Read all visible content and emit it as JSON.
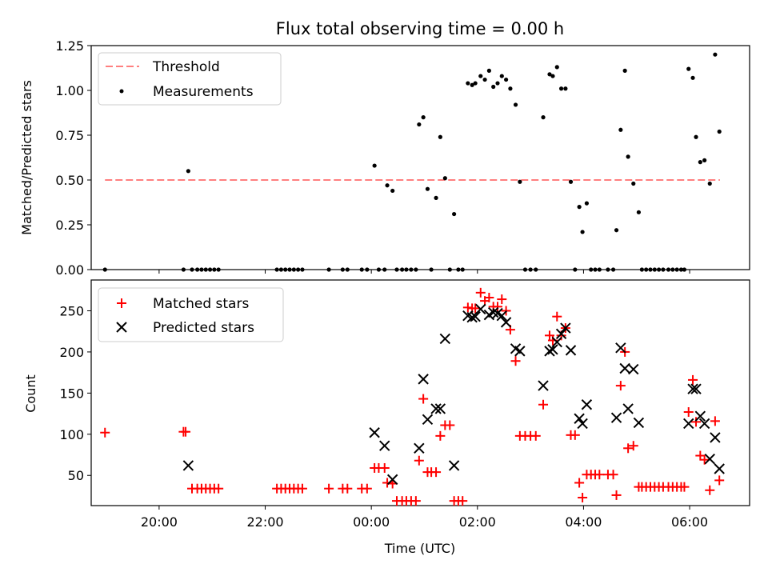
{
  "title": "Flux total observing time = 0.00 h",
  "chart_data": [
    {
      "type": "scatter",
      "ylabel": "Matched/Predicted stars",
      "ylim": [
        0,
        1.25
      ],
      "yticks": [
        0.0,
        0.25,
        0.5,
        0.75,
        1.0,
        1.25
      ],
      "ytick_labels": [
        "0.00",
        "0.25",
        "0.50",
        "0.75",
        "1.00",
        "1.25"
      ],
      "xlim": [
        18.72,
        31.13
      ],
      "legend": {
        "position": "top-left",
        "entries": [
          {
            "label": "Threshold",
            "style": "dashed-line",
            "color": "#ff7f7f"
          },
          {
            "label": "Measurements",
            "style": "dot",
            "color": "#000000"
          }
        ]
      },
      "threshold": {
        "name": "Threshold",
        "value": 0.5,
        "x_range": [
          18.98,
          30.57
        ],
        "color": "#ff7f7f"
      },
      "series": [
        {
          "name": "Measurements",
          "color": "#000000",
          "points": [
            [
              18.98,
              0.0
            ],
            [
              20.46,
              0.0
            ],
            [
              20.55,
              0.55
            ],
            [
              20.62,
              0.0
            ],
            [
              20.72,
              0.0
            ],
            [
              20.8,
              0.0
            ],
            [
              20.88,
              0.0
            ],
            [
              20.96,
              0.0
            ],
            [
              21.04,
              0.0
            ],
            [
              21.12,
              0.0
            ],
            [
              22.22,
              0.0
            ],
            [
              22.3,
              0.0
            ],
            [
              22.38,
              0.0
            ],
            [
              22.46,
              0.0
            ],
            [
              22.54,
              0.0
            ],
            [
              22.62,
              0.0
            ],
            [
              22.7,
              0.0
            ],
            [
              23.2,
              0.0
            ],
            [
              23.46,
              0.0
            ],
            [
              23.55,
              0.0
            ],
            [
              23.82,
              0.0
            ],
            [
              23.92,
              0.0
            ],
            [
              24.06,
              0.58
            ],
            [
              24.14,
              0.0
            ],
            [
              24.25,
              0.0
            ],
            [
              24.3,
              0.47
            ],
            [
              24.4,
              0.44
            ],
            [
              24.48,
              0.0
            ],
            [
              24.58,
              0.0
            ],
            [
              24.66,
              0.0
            ],
            [
              24.75,
              0.0
            ],
            [
              24.84,
              0.0
            ],
            [
              24.9,
              0.81
            ],
            [
              24.98,
              0.85
            ],
            [
              25.06,
              0.45
            ],
            [
              25.13,
              0.0
            ],
            [
              25.22,
              0.4
            ],
            [
              25.3,
              0.74
            ],
            [
              25.39,
              0.51
            ],
            [
              25.48,
              0.0
            ],
            [
              25.56,
              0.31
            ],
            [
              25.64,
              0.0
            ],
            [
              25.72,
              0.0
            ],
            [
              25.82,
              1.04
            ],
            [
              25.9,
              1.03
            ],
            [
              25.96,
              1.04
            ],
            [
              26.06,
              1.08
            ],
            [
              26.14,
              1.06
            ],
            [
              26.22,
              1.11
            ],
            [
              26.3,
              1.02
            ],
            [
              26.38,
              1.04
            ],
            [
              26.46,
              1.08
            ],
            [
              26.54,
              1.06
            ],
            [
              26.62,
              1.01
            ],
            [
              26.72,
              0.92
            ],
            [
              26.8,
              0.49
            ],
            [
              26.9,
              0.0
            ],
            [
              27.0,
              0.0
            ],
            [
              27.1,
              0.0
            ],
            [
              27.24,
              0.85
            ],
            [
              27.36,
              1.09
            ],
            [
              27.42,
              1.08
            ],
            [
              27.5,
              1.13
            ],
            [
              27.58,
              1.01
            ],
            [
              27.66,
              1.01
            ],
            [
              27.76,
              0.49
            ],
            [
              27.84,
              0.0
            ],
            [
              27.92,
              0.35
            ],
            [
              27.98,
              0.21
            ],
            [
              28.06,
              0.37
            ],
            [
              28.14,
              0.0
            ],
            [
              28.22,
              0.0
            ],
            [
              28.3,
              0.0
            ],
            [
              28.46,
              0.0
            ],
            [
              28.56,
              0.0
            ],
            [
              28.62,
              0.22
            ],
            [
              28.7,
              0.78
            ],
            [
              28.78,
              1.11
            ],
            [
              28.84,
              0.63
            ],
            [
              28.94,
              0.48
            ],
            [
              29.04,
              0.32
            ],
            [
              29.1,
              0.0
            ],
            [
              29.18,
              0.0
            ],
            [
              29.26,
              0.0
            ],
            [
              29.34,
              0.0
            ],
            [
              29.42,
              0.0
            ],
            [
              29.5,
              0.0
            ],
            [
              29.6,
              0.0
            ],
            [
              29.68,
              0.0
            ],
            [
              29.76,
              0.0
            ],
            [
              29.84,
              0.0
            ],
            [
              29.9,
              0.0
            ],
            [
              29.98,
              1.12
            ],
            [
              30.06,
              1.07
            ],
            [
              30.12,
              0.74
            ],
            [
              30.2,
              0.6
            ],
            [
              30.28,
              0.61
            ],
            [
              30.38,
              0.48
            ],
            [
              30.48,
              1.2
            ],
            [
              30.56,
              0.77
            ]
          ]
        }
      ]
    },
    {
      "type": "scatter",
      "xlabel": "Time (UTC)",
      "ylabel": "Count",
      "ylim": [
        13.3,
        287.4
      ],
      "yticks": [
        50,
        100,
        150,
        200,
        250
      ],
      "ytick_labels": [
        "50",
        "100",
        "150",
        "200",
        "250"
      ],
      "xlim": [
        18.72,
        31.13
      ],
      "xticks": [
        20,
        22,
        24,
        26,
        28,
        30
      ],
      "xtick_labels": [
        "20:00",
        "22:00",
        "00:00",
        "02:00",
        "04:00",
        "06:00"
      ],
      "legend": {
        "position": "top-left",
        "entries": [
          {
            "label": "Matched stars",
            "style": "plus",
            "color": "#ff0000"
          },
          {
            "label": "Predicted stars",
            "style": "x",
            "color": "#000000"
          }
        ]
      },
      "series": [
        {
          "name": "Matched stars",
          "marker": "plus",
          "color": "#ff0000",
          "points": [
            [
              18.98,
              102
            ],
            [
              20.46,
              103
            ],
            [
              20.5,
              103
            ],
            [
              20.62,
              34
            ],
            [
              20.72,
              34
            ],
            [
              20.8,
              34
            ],
            [
              20.88,
              34
            ],
            [
              20.96,
              34
            ],
            [
              21.04,
              34
            ],
            [
              21.12,
              34
            ],
            [
              22.22,
              34
            ],
            [
              22.3,
              34
            ],
            [
              22.38,
              34
            ],
            [
              22.46,
              34
            ],
            [
              22.54,
              34
            ],
            [
              22.62,
              34
            ],
            [
              22.7,
              34
            ],
            [
              23.2,
              34
            ],
            [
              23.46,
              34
            ],
            [
              23.55,
              34
            ],
            [
              23.82,
              34
            ],
            [
              23.92,
              34
            ],
            [
              24.06,
              59
            ],
            [
              24.14,
              59
            ],
            [
              24.25,
              59
            ],
            [
              24.3,
              41
            ],
            [
              24.4,
              40
            ],
            [
              24.48,
              19
            ],
            [
              24.58,
              19
            ],
            [
              24.66,
              19
            ],
            [
              24.75,
              19
            ],
            [
              24.84,
              19
            ],
            [
              24.9,
              68
            ],
            [
              24.98,
              143
            ],
            [
              25.06,
              54
            ],
            [
              25.13,
              54
            ],
            [
              25.22,
              54
            ],
            [
              25.3,
              98
            ],
            [
              25.39,
              111
            ],
            [
              25.48,
              111
            ],
            [
              25.56,
              19
            ],
            [
              25.64,
              19
            ],
            [
              25.72,
              19
            ],
            [
              25.82,
              254
            ],
            [
              25.9,
              253
            ],
            [
              25.96,
              253
            ],
            [
              26.06,
              272
            ],
            [
              26.14,
              262
            ],
            [
              26.22,
              266
            ],
            [
              26.3,
              255
            ],
            [
              26.38,
              255
            ],
            [
              26.46,
              264
            ],
            [
              26.54,
              250
            ],
            [
              26.62,
              227
            ],
            [
              26.72,
              189
            ],
            [
              26.8,
              98
            ],
            [
              26.9,
              98
            ],
            [
              27.0,
              98
            ],
            [
              27.1,
              98
            ],
            [
              27.24,
              136
            ],
            [
              27.36,
              220
            ],
            [
              27.42,
              214
            ],
            [
              27.5,
              243
            ],
            [
              27.58,
              220
            ],
            [
              27.66,
              229
            ],
            [
              27.76,
              99
            ],
            [
              27.84,
              99
            ],
            [
              27.92,
              41
            ],
            [
              27.98,
              23
            ],
            [
              28.06,
              51
            ],
            [
              28.14,
              51
            ],
            [
              28.22,
              51
            ],
            [
              28.3,
              51
            ],
            [
              28.46,
              51
            ],
            [
              28.56,
              51
            ],
            [
              28.62,
              26
            ],
            [
              28.7,
              159
            ],
            [
              28.78,
              200
            ],
            [
              28.84,
              83
            ],
            [
              28.94,
              86
            ],
            [
              29.04,
              36
            ],
            [
              29.1,
              36
            ],
            [
              29.18,
              36
            ],
            [
              29.26,
              36
            ],
            [
              29.34,
              36
            ],
            [
              29.42,
              36
            ],
            [
              29.5,
              36
            ],
            [
              29.6,
              36
            ],
            [
              29.68,
              36
            ],
            [
              29.76,
              36
            ],
            [
              29.84,
              36
            ],
            [
              29.9,
              36
            ],
            [
              29.98,
              127
            ],
            [
              30.06,
              166
            ],
            [
              30.12,
              115
            ],
            [
              30.2,
              74
            ],
            [
              30.28,
              69
            ],
            [
              30.38,
              32
            ],
            [
              30.48,
              116
            ],
            [
              30.56,
              44
            ]
          ]
        },
        {
          "name": "Predicted stars",
          "marker": "x",
          "color": "#000000",
          "points": [
            [
              20.55,
              62
            ],
            [
              24.06,
              102
            ],
            [
              24.25,
              86
            ],
            [
              24.4,
              45
            ],
            [
              24.9,
              83
            ],
            [
              24.98,
              167
            ],
            [
              25.06,
              118
            ],
            [
              25.22,
              131
            ],
            [
              25.3,
              131
            ],
            [
              25.39,
              216
            ],
            [
              25.56,
              62
            ],
            [
              25.82,
              244
            ],
            [
              25.9,
              242
            ],
            [
              25.96,
              243
            ],
            [
              26.06,
              252
            ],
            [
              26.22,
              245
            ],
            [
              26.3,
              248
            ],
            [
              26.38,
              247
            ],
            [
              26.46,
              244
            ],
            [
              26.54,
              236
            ],
            [
              26.72,
              204
            ],
            [
              26.8,
              201
            ],
            [
              27.24,
              159
            ],
            [
              27.36,
              201
            ],
            [
              27.42,
              203
            ],
            [
              27.5,
              212
            ],
            [
              27.58,
              222
            ],
            [
              27.66,
              229
            ],
            [
              27.76,
              202
            ],
            [
              27.92,
              119
            ],
            [
              27.98,
              113
            ],
            [
              28.06,
              136
            ],
            [
              28.62,
              120
            ],
            [
              28.7,
              205
            ],
            [
              28.78,
              180
            ],
            [
              28.84,
              131
            ],
            [
              28.94,
              179
            ],
            [
              29.04,
              114
            ],
            [
              29.98,
              113
            ],
            [
              30.06,
              155
            ],
            [
              30.12,
              155
            ],
            [
              30.2,
              122
            ],
            [
              30.28,
              113
            ],
            [
              30.38,
              70
            ],
            [
              30.48,
              96
            ],
            [
              30.56,
              58
            ]
          ]
        }
      ]
    }
  ]
}
